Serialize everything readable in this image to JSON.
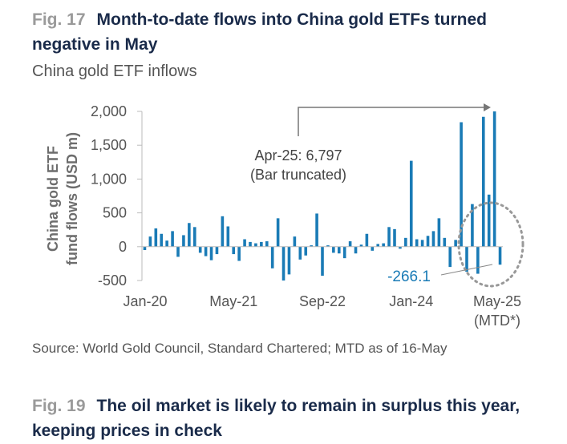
{
  "figure": {
    "number": "Fig. 17",
    "title": "Month-to-date flows into China gold ETFs turned negative in May",
    "subtitle": "China gold ETF inflows"
  },
  "source": "Source: World Gold Council, Standard Chartered; MTD as of 16-May",
  "next_figure": {
    "number": "Fig. 19",
    "title": "The oil market is likely to remain in surplus this year, keeping prices in check"
  },
  "chart_data": {
    "type": "bar",
    "ylabel_line1": "China gold ETF",
    "ylabel_line2": "fund flows (USD m)",
    "ylim": [
      -500,
      2000
    ],
    "yticks": [
      -500,
      0,
      500,
      1000,
      1500,
      2000
    ],
    "ytick_labels": [
      "-500",
      "0",
      "500",
      "1,000",
      "1,500",
      "2,000"
    ],
    "x_tick_labels": [
      {
        "label": "Jan-20",
        "index": 0
      },
      {
        "label": "May-21",
        "index": 16
      },
      {
        "label": "Sep-22",
        "index": 32
      },
      {
        "label": "Jan-24",
        "index": 48
      },
      {
        "label": "May-25",
        "index": 64
      }
    ],
    "x_tick_sublabel": "(MTD*)",
    "bar_color": "#1a7bb6",
    "values": [
      -50,
      150,
      270,
      190,
      90,
      230,
      -150,
      170,
      350,
      290,
      -90,
      -140,
      -200,
      -110,
      450,
      300,
      -110,
      -210,
      110,
      70,
      50,
      70,
      80,
      -320,
      420,
      -530,
      -410,
      150,
      -190,
      -130,
      20,
      490,
      -430,
      20,
      -90,
      -100,
      -170,
      80,
      -100,
      30,
      190,
      -60,
      40,
      50,
      290,
      260,
      -30,
      130,
      1270,
      110,
      100,
      160,
      230,
      420,
      130,
      -300,
      100,
      1840,
      -370,
      630,
      -400,
      1920,
      770,
      2000,
      -266.1
    ],
    "annotations": [
      {
        "text_line1": "Apr-25: 6,797",
        "text_line2": "(Bar truncated)"
      },
      {
        "text": "-266.1",
        "color": "#1a7bb6"
      }
    ]
  }
}
